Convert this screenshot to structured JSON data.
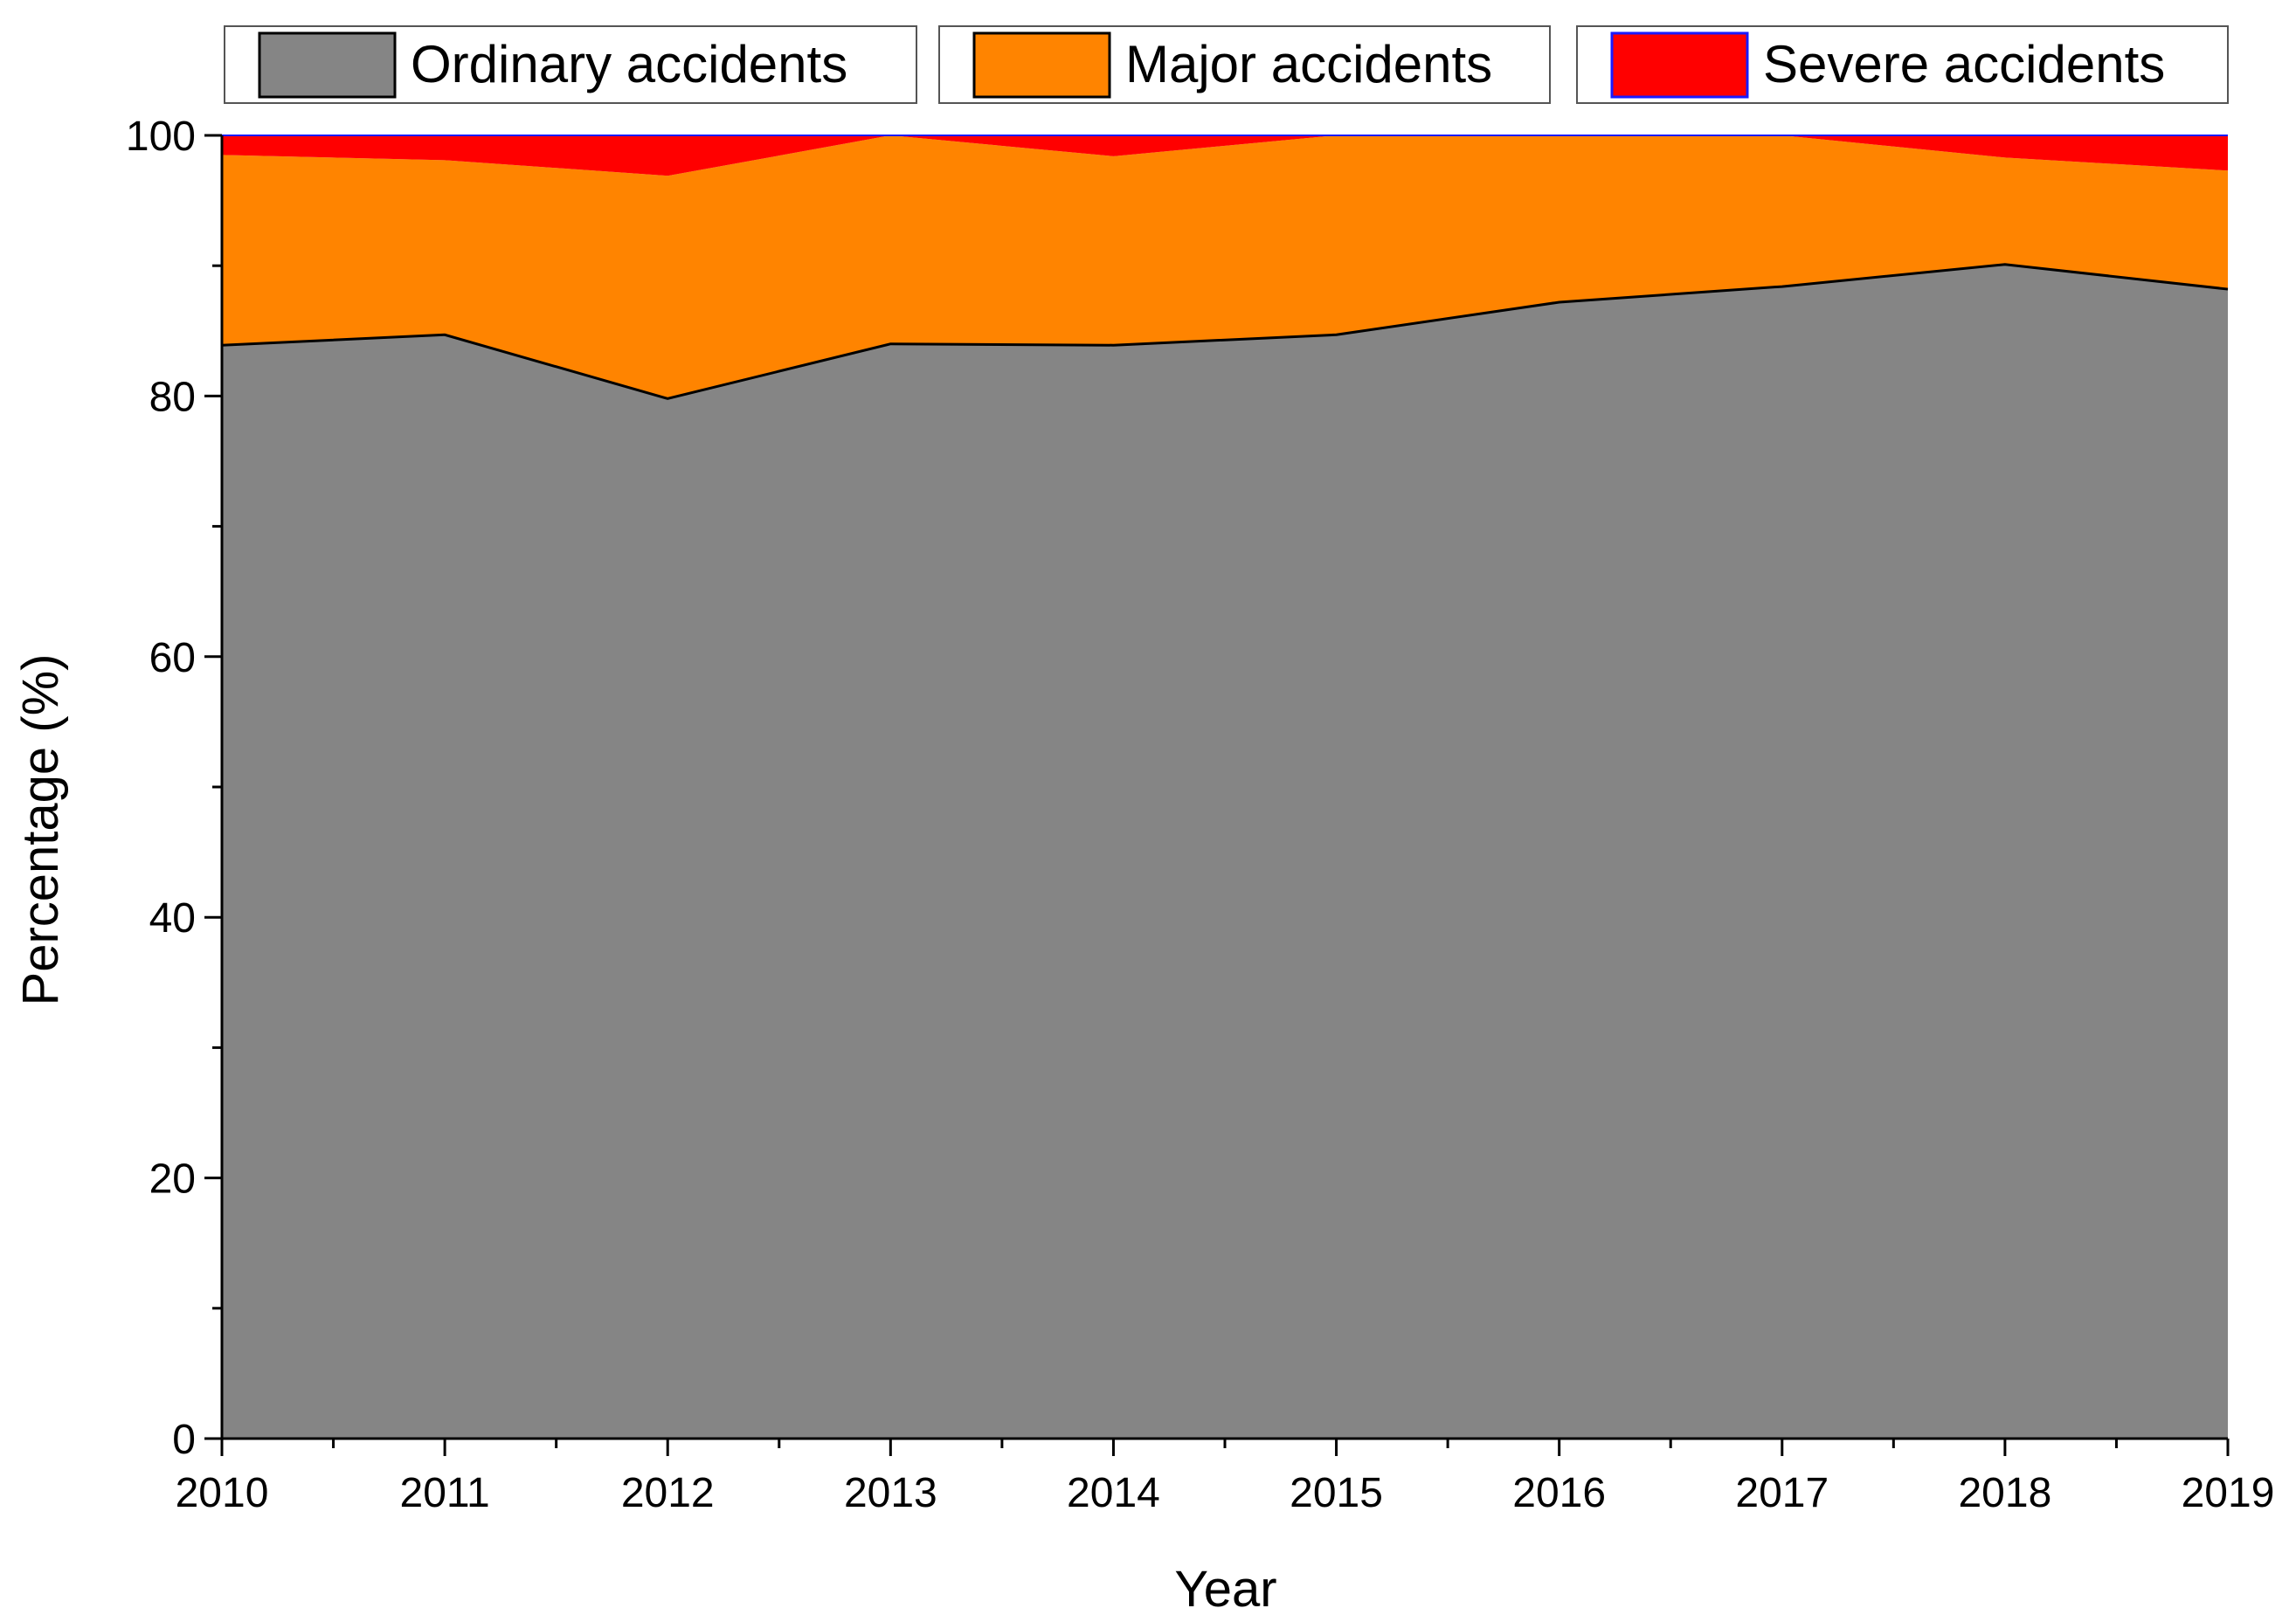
{
  "chart_data": {
    "type": "area",
    "stacking": "percent",
    "title": "",
    "xlabel": "Year",
    "ylabel": "Percentage (%)",
    "xlim": [
      2010,
      2019
    ],
    "ylim": [
      0,
      100
    ],
    "x": [
      2010,
      2011,
      2012,
      2013,
      2014,
      2015,
      2016,
      2017,
      2018,
      2019
    ],
    "x_ticks": [
      "2010",
      "2011",
      "2012",
      "2013",
      "2014",
      "2015",
      "2016",
      "2017",
      "2018",
      "2019"
    ],
    "y_ticks": [
      "0",
      "20",
      "40",
      "60",
      "80",
      "100"
    ],
    "grid": false,
    "legend_position": "top",
    "series": [
      {
        "name": "Ordinary accidents",
        "color": "#858585",
        "values": [
          83.9,
          84.7,
          79.8,
          84.0,
          83.9,
          84.7,
          87.2,
          88.4,
          90.1,
          88.2
        ]
      },
      {
        "name": "Major accidents",
        "color": "#ff8400",
        "values": [
          14.6,
          13.4,
          17.1,
          16.0,
          14.5,
          15.3,
          12.8,
          11.6,
          8.2,
          9.1
        ]
      },
      {
        "name": "Severe accidents",
        "color": "#ff0000",
        "values": [
          1.5,
          1.9,
          3.1,
          0.0,
          1.6,
          0.0,
          0.0,
          0.0,
          1.7,
          2.7
        ]
      }
    ]
  }
}
